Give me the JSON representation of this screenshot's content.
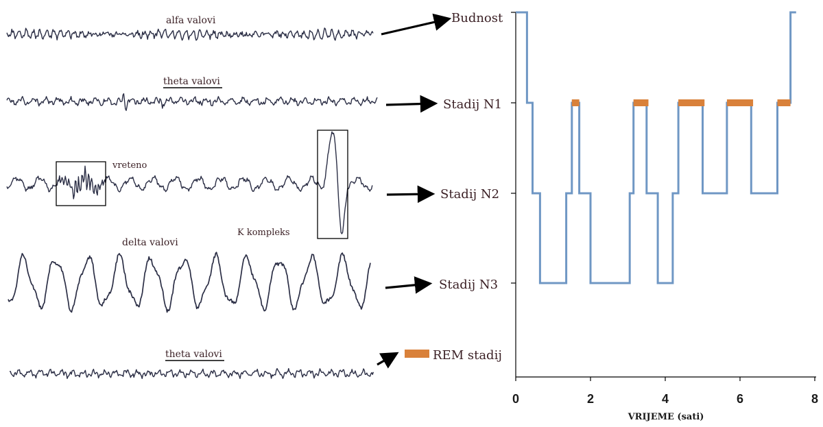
{
  "waves": [
    {
      "id": "alpha",
      "label": "alfa valovi",
      "underline": false,
      "target_stage": "Budnost"
    },
    {
      "id": "theta1",
      "label": "theta valovi",
      "underline": true,
      "target_stage": "Stadij N1"
    },
    {
      "id": "n2",
      "label": "vreteno",
      "underline": false,
      "target_stage": "Stadij N2"
    },
    {
      "id": "delta",
      "label": "delta valovi",
      "underline": false,
      "target_stage": "Stadij N3"
    },
    {
      "id": "theta2",
      "label": "theta valovi",
      "underline": true,
      "target_stage": "REM stadij"
    }
  ],
  "k_complex_label": "K kompleks",
  "colors": {
    "wave": "#2b2e45",
    "hypnogram": "#6f97c4",
    "rem": "#d9813a",
    "arrow": "#000000",
    "text": "#3a1f24"
  },
  "chart_data": {
    "type": "line",
    "title": "",
    "xlabel": "VRIJEME (sati)",
    "ylabel": "",
    "xlim": [
      0,
      8
    ],
    "x_ticks": [
      0,
      2,
      4,
      6,
      8
    ],
    "stage_levels": [
      "Budnost",
      "Stadij N1",
      "Stadij N2",
      "Stadij N3",
      "REM stadij"
    ],
    "hypnogram": {
      "name": "",
      "points": [
        [
          0,
          "Budnost"
        ],
        [
          0.3,
          "Budnost"
        ],
        [
          0.3,
          "Stadij N1"
        ],
        [
          0.45,
          "Stadij N1"
        ],
        [
          0.45,
          "Stadij N2"
        ],
        [
          0.65,
          "Stadij N2"
        ],
        [
          0.65,
          "Stadij N3"
        ],
        [
          1.35,
          "Stadij N3"
        ],
        [
          1.35,
          "Stadij N2"
        ],
        [
          1.5,
          "Stadij N2"
        ],
        [
          1.5,
          "Stadij N1"
        ],
        [
          1.7,
          "Stadij N1"
        ],
        [
          1.7,
          "Stadij N2"
        ],
        [
          2.0,
          "Stadij N2"
        ],
        [
          2.0,
          "Stadij N3"
        ],
        [
          3.05,
          "Stadij N3"
        ],
        [
          3.05,
          "Stadij N2"
        ],
        [
          3.15,
          "Stadij N2"
        ],
        [
          3.15,
          "Stadij N1"
        ],
        [
          3.5,
          "Stadij N1"
        ],
        [
          3.5,
          "Stadij N2"
        ],
        [
          3.8,
          "Stadij N2"
        ],
        [
          3.8,
          "Stadij N3"
        ],
        [
          4.2,
          "Stadij N3"
        ],
        [
          4.2,
          "Stadij N2"
        ],
        [
          4.35,
          "Stadij N2"
        ],
        [
          4.35,
          "Stadij N1"
        ],
        [
          5.0,
          "Stadij N1"
        ],
        [
          5.0,
          "Stadij N2"
        ],
        [
          5.65,
          "Stadij N2"
        ],
        [
          5.65,
          "Stadij N1"
        ],
        [
          6.3,
          "Stadij N1"
        ],
        [
          6.3,
          "Stadij N2"
        ],
        [
          7.0,
          "Stadij N2"
        ],
        [
          7.0,
          "Stadij N1"
        ],
        [
          7.35,
          "Stadij N1"
        ],
        [
          7.35,
          "Budnost"
        ],
        [
          7.5,
          "Budnost"
        ]
      ]
    },
    "rem_periods": [
      [
        1.5,
        1.7
      ],
      [
        3.15,
        3.55
      ],
      [
        4.35,
        5.05
      ],
      [
        5.65,
        6.35
      ],
      [
        7.0,
        7.35
      ]
    ]
  }
}
